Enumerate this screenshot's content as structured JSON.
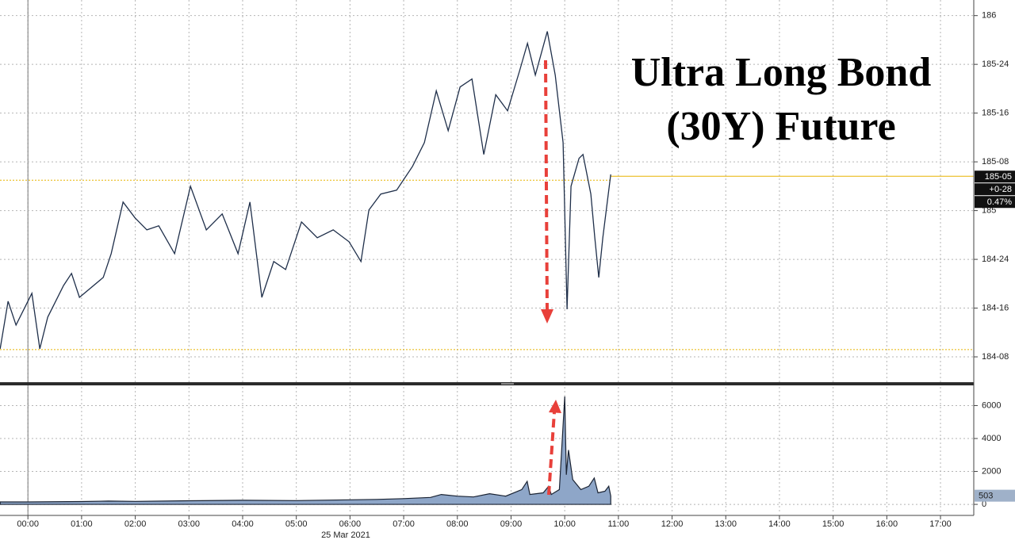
{
  "chart_data": [
    {
      "type": "line",
      "title": "Ultra Long Bond (30Y) Future",
      "color": "#1f2f4a",
      "x": [
        -0.517,
        -0.369,
        -0.222,
        0.074,
        0.222,
        0.369,
        0.665,
        0.812,
        0.96,
        1.403,
        1.551,
        1.773,
        1.994,
        2.216,
        2.437,
        2.733,
        3.028,
        3.323,
        3.619,
        3.914,
        4.136,
        4.357,
        4.579,
        4.801,
        5.096,
        5.391,
        5.687,
        5.982,
        6.204,
        6.352,
        6.573,
        6.869,
        7.164,
        7.386,
        7.607,
        7.829,
        8.05,
        8.272,
        8.493,
        8.715,
        8.936,
        9.158,
        9.306,
        9.453,
        9.675,
        9.823,
        9.97,
        10.044,
        10.118,
        10.266,
        10.34,
        10.487,
        10.561,
        10.635,
        10.709,
        10.857
      ],
      "values": [
        184.291,
        184.535,
        184.413,
        184.576,
        184.291,
        184.454,
        184.616,
        184.678,
        184.555,
        184.657,
        184.779,
        185.044,
        184.963,
        184.901,
        184.922,
        184.779,
        185.125,
        184.901,
        184.983,
        184.779,
        185.044,
        184.555,
        184.739,
        184.698,
        184.942,
        184.861,
        184.901,
        184.84,
        184.739,
        185.003,
        185.085,
        185.105,
        185.227,
        185.349,
        185.614,
        185.41,
        185.634,
        185.675,
        185.288,
        185.594,
        185.512,
        185.716,
        185.858,
        185.695,
        185.919,
        185.695,
        185.349,
        184.494,
        185.125,
        185.268,
        185.288,
        185.085,
        184.861,
        184.657,
        184.861,
        185.186
      ],
      "ylim": [
        184.12,
        186.08
      ],
      "yticks": [
        186,
        {
          "value": 185.75,
          "label": "185-24"
        },
        {
          "value": 185.5,
          "label": "185-16"
        },
        {
          "value": 185.25,
          "label": "185-08"
        },
        185,
        {
          "value": 184.75,
          "label": "184-24"
        },
        {
          "value": 184.5,
          "label": "184-16"
        },
        {
          "value": 184.25,
          "label": "184-08"
        }
      ],
      "grid": true,
      "last_price": {
        "value": 185.156,
        "label": "185-05"
      },
      "change": "+0-28",
      "change_pct": "0.47%",
      "low_line": 184.287,
      "ref_color": "#e8b400"
    },
    {
      "type": "area",
      "color": "#1a2333",
      "fill": "#8ea6c8",
      "x": [
        -0.517,
        0,
        1,
        1.5,
        2,
        3,
        4,
        5,
        6,
        6.5,
        7,
        7.5,
        7.7,
        8,
        8.3,
        8.6,
        8.9,
        9.2,
        9.3,
        9.35,
        9.6,
        9.7,
        9.75,
        9.9,
        10.0,
        10.03,
        10.07,
        10.15,
        10.3,
        10.45,
        10.55,
        10.62,
        10.75,
        10.82,
        10.857
      ],
      "values": [
        150,
        150,
        170,
        200,
        180,
        220,
        250,
        230,
        280,
        300,
        350,
        420,
        600,
        500,
        450,
        650,
        500,
        900,
        1400,
        600,
        700,
        1100,
        600,
        900,
        6550,
        1800,
        3300,
        1500,
        900,
        1100,
        1600,
        700,
        800,
        1100,
        503
      ],
      "xlim": [
        -0.52,
        17.62
      ],
      "xticks": [
        {
          "value": 0,
          "label": "00:00"
        },
        {
          "value": 1,
          "label": "01:00"
        },
        {
          "value": 2,
          "label": "02:00"
        },
        {
          "value": 3,
          "label": "03:00"
        },
        {
          "value": 4,
          "label": "04:00"
        },
        {
          "value": 5,
          "label": "05:00"
        },
        {
          "value": 6,
          "label": "06:00"
        },
        {
          "value": 7,
          "label": "07:00"
        },
        {
          "value": 8,
          "label": "08:00"
        },
        {
          "value": 9,
          "label": "09:00"
        },
        {
          "value": 10,
          "label": "10:00"
        },
        {
          "value": 11,
          "label": "11:00"
        },
        {
          "value": 12,
          "label": "12:00"
        },
        {
          "value": 13,
          "label": "13:00"
        },
        {
          "value": 14,
          "label": "14:00"
        },
        {
          "value": 15,
          "label": "15:00"
        },
        {
          "value": 16,
          "label": "16:00"
        },
        {
          "value": 17,
          "label": "17:00"
        }
      ],
      "x_label": "25 Mar 2021",
      "ylim": [
        -430,
        7130
      ],
      "yticks": [
        0,
        2000,
        4000,
        6000
      ],
      "grid": true
    }
  ]
}
